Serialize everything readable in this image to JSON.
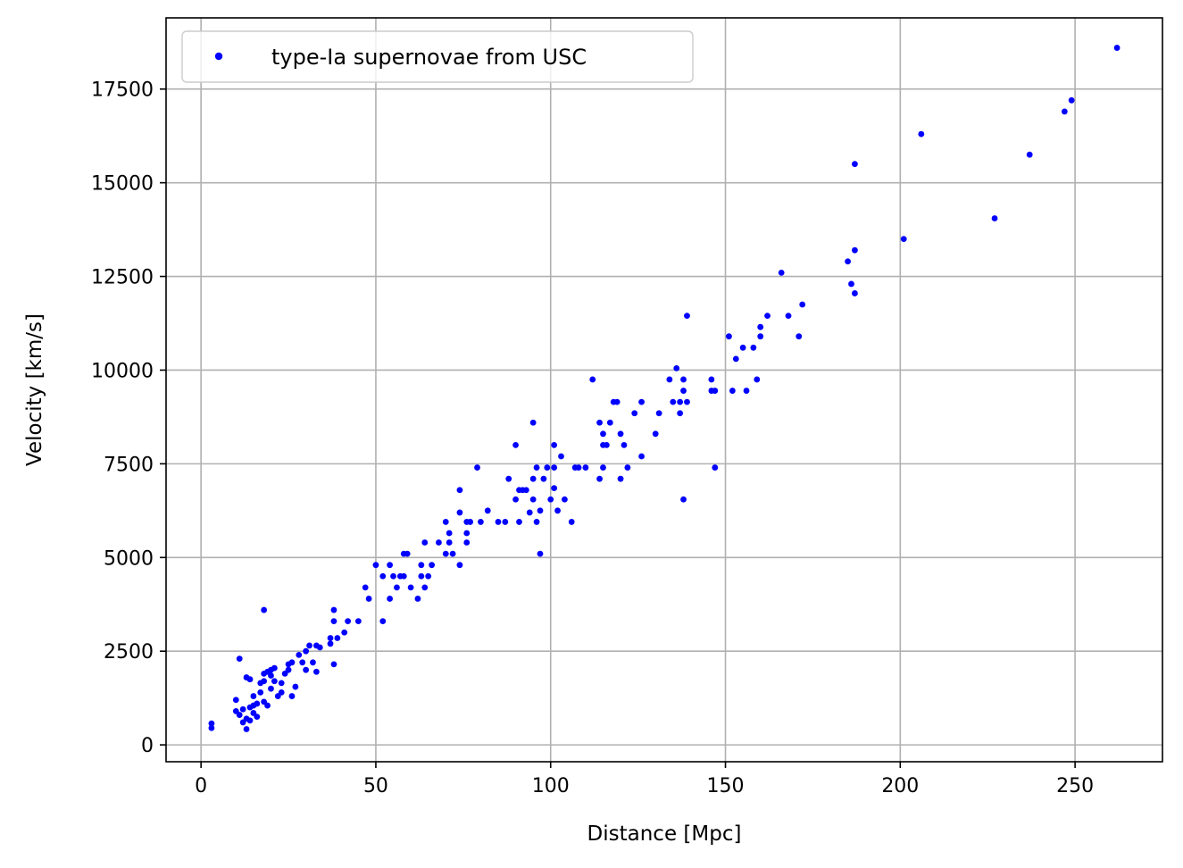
{
  "chart_data": {
    "type": "scatter",
    "title": "",
    "xlabel": "Distance [Mpc]",
    "ylabel": "Velocity [km/s]",
    "xlim": [
      -10,
      275
    ],
    "ylim": [
      -450,
      19400
    ],
    "xticks": [
      0,
      50,
      100,
      150,
      200,
      250
    ],
    "yticks": [
      0,
      2500,
      5000,
      7500,
      10000,
      12500,
      15000,
      17500
    ],
    "grid": true,
    "legend": {
      "position": "top-left",
      "entries": [
        "type-Ia supernovae from USC"
      ]
    },
    "colors": {
      "points": "#0000ff",
      "grid": "#b0b0b0",
      "axes": "#000000"
    },
    "series": [
      {
        "name": "type-Ia supernovae from USC",
        "marker": "dot",
        "points": [
          [
            3,
            450
          ],
          [
            3,
            570
          ],
          [
            10,
            900
          ],
          [
            10,
            1200
          ],
          [
            11,
            2300
          ],
          [
            11,
            800
          ],
          [
            12,
            950
          ],
          [
            12,
            600
          ],
          [
            13,
            700
          ],
          [
            13,
            1800
          ],
          [
            13,
            420
          ],
          [
            14,
            1750
          ],
          [
            14,
            1000
          ],
          [
            14,
            650
          ],
          [
            15,
            1300
          ],
          [
            15,
            1050
          ],
          [
            15,
            850
          ],
          [
            16,
            1100
          ],
          [
            16,
            750
          ],
          [
            17,
            1400
          ],
          [
            17,
            1650
          ],
          [
            18,
            1900
          ],
          [
            18,
            1700
          ],
          [
            18,
            1150
          ],
          [
            18,
            3600
          ],
          [
            19,
            1050
          ],
          [
            19,
            1950
          ],
          [
            20,
            2000
          ],
          [
            20,
            1500
          ],
          [
            20,
            1850
          ],
          [
            21,
            2050
          ],
          [
            21,
            1700
          ],
          [
            22,
            1300
          ],
          [
            23,
            1400
          ],
          [
            23,
            1650
          ],
          [
            24,
            1900
          ],
          [
            25,
            2150
          ],
          [
            25,
            2000
          ],
          [
            26,
            2200
          ],
          [
            26,
            1300
          ],
          [
            27,
            1550
          ],
          [
            28,
            2400
          ],
          [
            29,
            2200
          ],
          [
            30,
            2500
          ],
          [
            30,
            2000
          ],
          [
            31,
            2650
          ],
          [
            32,
            2200
          ],
          [
            33,
            2650
          ],
          [
            33,
            1950
          ],
          [
            34,
            2600
          ],
          [
            37,
            2700
          ],
          [
            37,
            2850
          ],
          [
            38,
            3300
          ],
          [
            38,
            3600
          ],
          [
            38,
            2150
          ],
          [
            39,
            2850
          ],
          [
            41,
            3000
          ],
          [
            42,
            3300
          ],
          [
            45,
            3300
          ],
          [
            47,
            4200
          ],
          [
            48,
            3900
          ],
          [
            50,
            4800
          ],
          [
            52,
            3300
          ],
          [
            52,
            4500
          ],
          [
            54,
            4800
          ],
          [
            54,
            3900
          ],
          [
            55,
            4500
          ],
          [
            56,
            4200
          ],
          [
            57,
            4500
          ],
          [
            58,
            5100
          ],
          [
            58,
            4500
          ],
          [
            59,
            5100
          ],
          [
            60,
            4200
          ],
          [
            62,
            3900
          ],
          [
            63,
            4500
          ],
          [
            63,
            4800
          ],
          [
            64,
            5400
          ],
          [
            64,
            4200
          ],
          [
            65,
            4500
          ],
          [
            66,
            4800
          ],
          [
            68,
            5400
          ],
          [
            70,
            5950
          ],
          [
            70,
            5100
          ],
          [
            71,
            5400
          ],
          [
            71,
            5650
          ],
          [
            72,
            5100
          ],
          [
            74,
            4800
          ],
          [
            74,
            6800
          ],
          [
            74,
            6200
          ],
          [
            76,
            5950
          ],
          [
            76,
            5650
          ],
          [
            76,
            5400
          ],
          [
            77,
            5950
          ],
          [
            79,
            7400
          ],
          [
            80,
            5950
          ],
          [
            82,
            6250
          ],
          [
            85,
            5950
          ],
          [
            87,
            5950
          ],
          [
            88,
            7100
          ],
          [
            90,
            6550
          ],
          [
            90,
            8000
          ],
          [
            91,
            5950
          ],
          [
            91,
            6800
          ],
          [
            92,
            6800
          ],
          [
            93,
            6800
          ],
          [
            94,
            6200
          ],
          [
            95,
            7100
          ],
          [
            95,
            8600
          ],
          [
            95,
            6550
          ],
          [
            96,
            5950
          ],
          [
            96,
            7400
          ],
          [
            97,
            6250
          ],
          [
            97,
            5100
          ],
          [
            98,
            7100
          ],
          [
            99,
            7400
          ],
          [
            100,
            6550
          ],
          [
            101,
            7400
          ],
          [
            101,
            6850
          ],
          [
            101,
            8000
          ],
          [
            102,
            6250
          ],
          [
            103,
            7700
          ],
          [
            104,
            6550
          ],
          [
            106,
            5950
          ],
          [
            107,
            7400
          ],
          [
            108,
            7400
          ],
          [
            110,
            7400
          ],
          [
            112,
            9750
          ],
          [
            114,
            7100
          ],
          [
            114,
            8600
          ],
          [
            115,
            8000
          ],
          [
            115,
            8300
          ],
          [
            115,
            7400
          ],
          [
            116,
            8000
          ],
          [
            117,
            8600
          ],
          [
            118,
            9150
          ],
          [
            119,
            9150
          ],
          [
            120,
            8300
          ],
          [
            120,
            7100
          ],
          [
            121,
            8000
          ],
          [
            122,
            7400
          ],
          [
            124,
            8850
          ],
          [
            126,
            9150
          ],
          [
            126,
            7700
          ],
          [
            130,
            8300
          ],
          [
            131,
            8850
          ],
          [
            134,
            9750
          ],
          [
            135,
            9150
          ],
          [
            136,
            10050
          ],
          [
            137,
            9150
          ],
          [
            137,
            8850
          ],
          [
            138,
            9450
          ],
          [
            138,
            9750
          ],
          [
            138,
            6550
          ],
          [
            139,
            11450
          ],
          [
            139,
            9150
          ],
          [
            146,
            9750
          ],
          [
            146,
            9450
          ],
          [
            147,
            9450
          ],
          [
            147,
            7400
          ],
          [
            151,
            10900
          ],
          [
            152,
            9450
          ],
          [
            153,
            10300
          ],
          [
            155,
            10600
          ],
          [
            156,
            9450
          ],
          [
            158,
            10600
          ],
          [
            159,
            9750
          ],
          [
            160,
            10900
          ],
          [
            160,
            11150
          ],
          [
            162,
            11450
          ],
          [
            166,
            12600
          ],
          [
            168,
            11450
          ],
          [
            171,
            10900
          ],
          [
            172,
            11750
          ],
          [
            185,
            12900
          ],
          [
            186,
            12300
          ],
          [
            187,
            12050
          ],
          [
            187,
            15500
          ],
          [
            187,
            13200
          ],
          [
            201,
            13500
          ],
          [
            206,
            16300
          ],
          [
            227,
            14050
          ],
          [
            237,
            15750
          ],
          [
            247,
            16900
          ],
          [
            249,
            17200
          ],
          [
            262,
            18600
          ]
        ]
      }
    ]
  }
}
